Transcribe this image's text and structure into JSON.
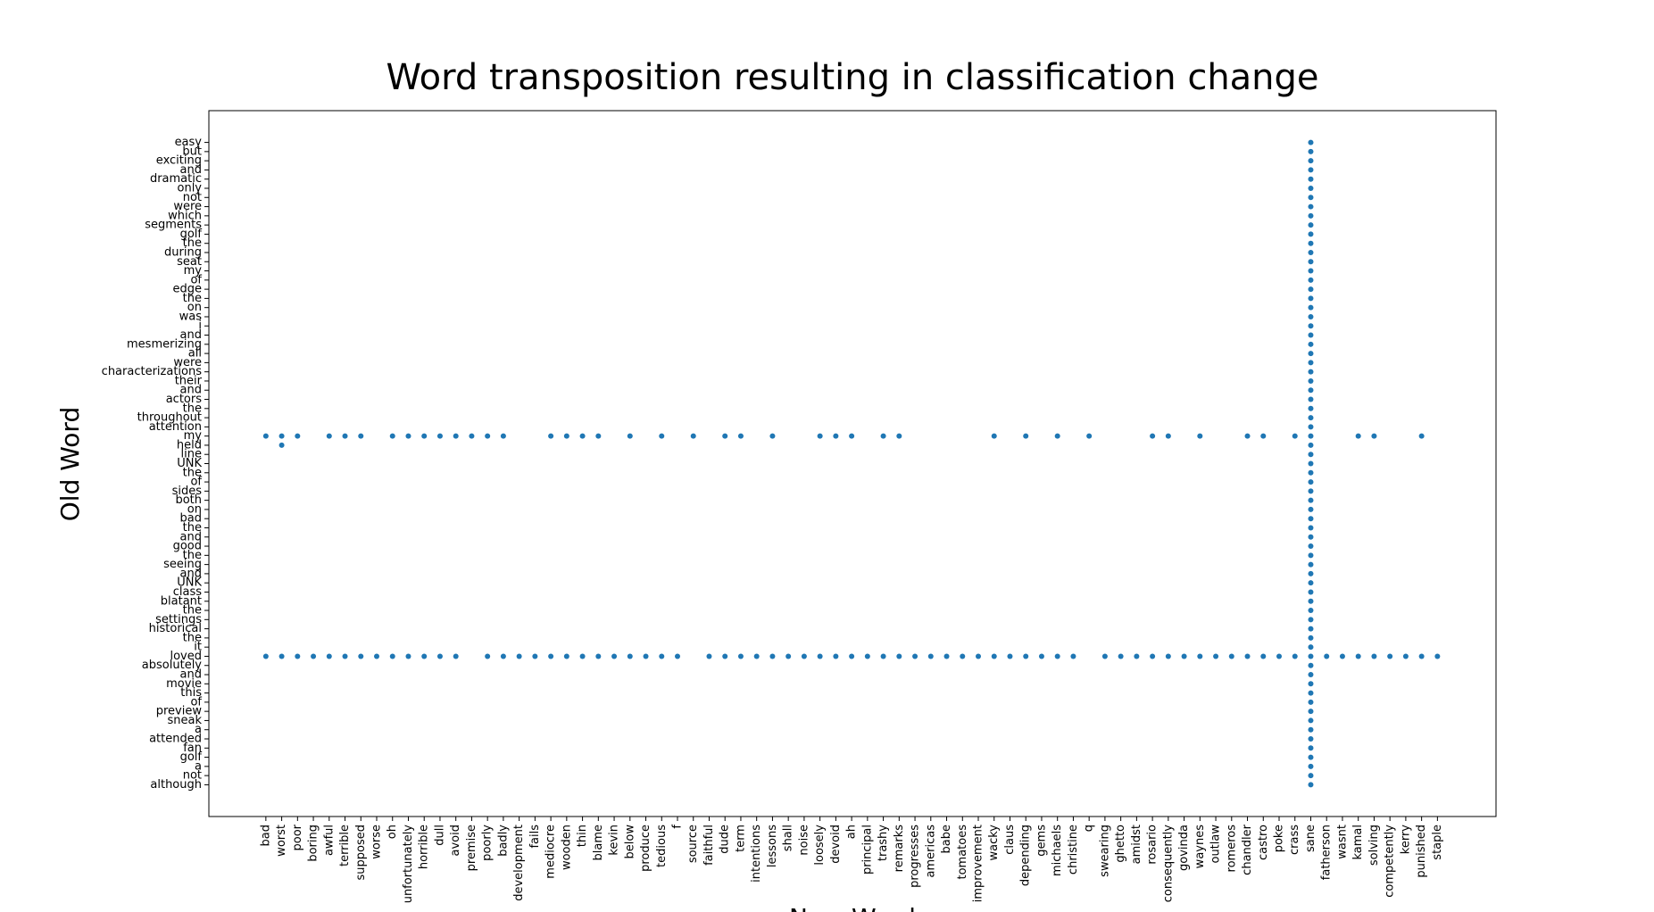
{
  "chart_data": {
    "type": "scatter",
    "title": "Word transposition resulting in classification change",
    "xlabel": "New Word",
    "ylabel": "Old Word",
    "xlim": [
      -3.6,
      77.7
    ],
    "ylim": [
      -3.46,
      73.46
    ],
    "xticks": [
      {
        "value": 0,
        "label": "bad"
      },
      {
        "value": 1,
        "label": "worst"
      },
      {
        "value": 2,
        "label": "poor"
      },
      {
        "value": 3,
        "label": "boring"
      },
      {
        "value": 4,
        "label": "awful"
      },
      {
        "value": 5,
        "label": "terrible"
      },
      {
        "value": 6,
        "label": "supposed"
      },
      {
        "value": 7,
        "label": "worse"
      },
      {
        "value": 8,
        "label": "oh"
      },
      {
        "value": 9,
        "label": "unfortunately"
      },
      {
        "value": 10,
        "label": "horrible"
      },
      {
        "value": 11,
        "label": "dull"
      },
      {
        "value": 12,
        "label": "avoid"
      },
      {
        "value": 13,
        "label": "premise"
      },
      {
        "value": 14,
        "label": "poorly"
      },
      {
        "value": 15,
        "label": "badly"
      },
      {
        "value": 16,
        "label": "development"
      },
      {
        "value": 17,
        "label": "fails"
      },
      {
        "value": 18,
        "label": "mediocre"
      },
      {
        "value": 19,
        "label": "wooden"
      },
      {
        "value": 20,
        "label": "thin"
      },
      {
        "value": 21,
        "label": "blame"
      },
      {
        "value": 22,
        "label": "kevin"
      },
      {
        "value": 23,
        "label": "below"
      },
      {
        "value": 24,
        "label": "produce"
      },
      {
        "value": 25,
        "label": "tedious"
      },
      {
        "value": 26,
        "label": "f"
      },
      {
        "value": 27,
        "label": "source"
      },
      {
        "value": 28,
        "label": "faithful"
      },
      {
        "value": 29,
        "label": "dude"
      },
      {
        "value": 30,
        "label": "term"
      },
      {
        "value": 31,
        "label": "intentions"
      },
      {
        "value": 32,
        "label": "lessons"
      },
      {
        "value": 33,
        "label": "shall"
      },
      {
        "value": 34,
        "label": "noise"
      },
      {
        "value": 35,
        "label": "loosely"
      },
      {
        "value": 36,
        "label": "devoid"
      },
      {
        "value": 37,
        "label": "ah"
      },
      {
        "value": 38,
        "label": "principal"
      },
      {
        "value": 39,
        "label": "trashy"
      },
      {
        "value": 40,
        "label": "remarks"
      },
      {
        "value": 41,
        "label": "progresses"
      },
      {
        "value": 42,
        "label": "americas"
      },
      {
        "value": 43,
        "label": "babe"
      },
      {
        "value": 44,
        "label": "tomatoes"
      },
      {
        "value": 45,
        "label": "improvement"
      },
      {
        "value": 46,
        "label": "wacky"
      },
      {
        "value": 47,
        "label": "claus"
      },
      {
        "value": 48,
        "label": "depending"
      },
      {
        "value": 49,
        "label": "gems"
      },
      {
        "value": 50,
        "label": "michaels"
      },
      {
        "value": 51,
        "label": "christine"
      },
      {
        "value": 52,
        "label": "q"
      },
      {
        "value": 53,
        "label": "swearing"
      },
      {
        "value": 54,
        "label": "ghetto"
      },
      {
        "value": 55,
        "label": "amidst"
      },
      {
        "value": 56,
        "label": "rosario"
      },
      {
        "value": 57,
        "label": "consequently"
      },
      {
        "value": 58,
        "label": "govinda"
      },
      {
        "value": 59,
        "label": "waynes"
      },
      {
        "value": 60,
        "label": "outlaw"
      },
      {
        "value": 61,
        "label": "romeros"
      },
      {
        "value": 62,
        "label": "chandler"
      },
      {
        "value": 63,
        "label": "castro"
      },
      {
        "value": 64,
        "label": "poke"
      },
      {
        "value": 65,
        "label": "crass"
      },
      {
        "value": 66,
        "label": "sane"
      },
      {
        "value": 67,
        "label": "fatherson"
      },
      {
        "value": 68,
        "label": "wasnt"
      },
      {
        "value": 69,
        "label": "kamal"
      },
      {
        "value": 70,
        "label": "solving"
      },
      {
        "value": 71,
        "label": "competently"
      },
      {
        "value": 72,
        "label": "kerry"
      },
      {
        "value": 73,
        "label": "punished"
      },
      {
        "value": 74,
        "label": "staple"
      }
    ],
    "yticks": [
      {
        "value": 70,
        "label": "easy"
      },
      {
        "value": 69,
        "label": "but"
      },
      {
        "value": 68,
        "label": "exciting"
      },
      {
        "value": 67,
        "label": "and"
      },
      {
        "value": 66,
        "label": "dramatic"
      },
      {
        "value": 65,
        "label": "only"
      },
      {
        "value": 64,
        "label": "not"
      },
      {
        "value": 63,
        "label": "were"
      },
      {
        "value": 62,
        "label": "which"
      },
      {
        "value": 61,
        "label": "segments"
      },
      {
        "value": 60,
        "label": "golf"
      },
      {
        "value": 59,
        "label": "the"
      },
      {
        "value": 58,
        "label": "during"
      },
      {
        "value": 57,
        "label": "seat"
      },
      {
        "value": 56,
        "label": "my"
      },
      {
        "value": 55,
        "label": "of"
      },
      {
        "value": 54,
        "label": "edge"
      },
      {
        "value": 53,
        "label": "the"
      },
      {
        "value": 52,
        "label": "on"
      },
      {
        "value": 51,
        "label": "was"
      },
      {
        "value": 50,
        "label": "i"
      },
      {
        "value": 49,
        "label": "and"
      },
      {
        "value": 48,
        "label": "mesmerizing"
      },
      {
        "value": 47,
        "label": "all"
      },
      {
        "value": 46,
        "label": "were"
      },
      {
        "value": 45,
        "label": "characterizations"
      },
      {
        "value": 44,
        "label": "their"
      },
      {
        "value": 43,
        "label": "and"
      },
      {
        "value": 42,
        "label": "actors"
      },
      {
        "value": 41,
        "label": "the"
      },
      {
        "value": 40,
        "label": "throughout"
      },
      {
        "value": 39,
        "label": "attention"
      },
      {
        "value": 38,
        "label": "my"
      },
      {
        "value": 37,
        "label": "held"
      },
      {
        "value": 36,
        "label": "line"
      },
      {
        "value": 35,
        "label": "UNK"
      },
      {
        "value": 34,
        "label": "the"
      },
      {
        "value": 33,
        "label": "of"
      },
      {
        "value": 32,
        "label": "sides"
      },
      {
        "value": 31,
        "label": "both"
      },
      {
        "value": 30,
        "label": "on"
      },
      {
        "value": 29,
        "label": "bad"
      },
      {
        "value": 28,
        "label": "the"
      },
      {
        "value": 27,
        "label": "and"
      },
      {
        "value": 26,
        "label": "good"
      },
      {
        "value": 25,
        "label": "the"
      },
      {
        "value": 24,
        "label": "seeing"
      },
      {
        "value": 23,
        "label": "and"
      },
      {
        "value": 22,
        "label": "UNK"
      },
      {
        "value": 21,
        "label": "class"
      },
      {
        "value": 20,
        "label": "blatant"
      },
      {
        "value": 19,
        "label": "the"
      },
      {
        "value": 18,
        "label": "settings"
      },
      {
        "value": 17,
        "label": "historical"
      },
      {
        "value": 16,
        "label": "the"
      },
      {
        "value": 15,
        "label": "it"
      },
      {
        "value": 14,
        "label": "loved"
      },
      {
        "value": 13,
        "label": "absolutely"
      },
      {
        "value": 12,
        "label": "and"
      },
      {
        "value": 11,
        "label": "movie"
      },
      {
        "value": 10,
        "label": "this"
      },
      {
        "value": 9,
        "label": "of"
      },
      {
        "value": 8,
        "label": "preview"
      },
      {
        "value": 7,
        "label": "sneak"
      },
      {
        "value": 6,
        "label": "a"
      },
      {
        "value": 5,
        "label": "attended"
      },
      {
        "value": 4,
        "label": "fan"
      },
      {
        "value": 3,
        "label": "golf"
      },
      {
        "value": 2,
        "label": "a"
      },
      {
        "value": 1,
        "label": "not"
      },
      {
        "value": 0,
        "label": "although"
      }
    ],
    "series": [
      {
        "color": "#1f77b4",
        "x": [
          66,
          66,
          66,
          66,
          66,
          66,
          66,
          66,
          66,
          66,
          66,
          66,
          66,
          66,
          66,
          66,
          66,
          66,
          66,
          66,
          66,
          66,
          66,
          66,
          66,
          66,
          66,
          66,
          66,
          66,
          66,
          66,
          66,
          66,
          66,
          66,
          66,
          66,
          66,
          66,
          66,
          66,
          66,
          66,
          66,
          66,
          66,
          66,
          66,
          66,
          66,
          66,
          66,
          66,
          66,
          66,
          66,
          66,
          66,
          66,
          66,
          66,
          66,
          66,
          66,
          66,
          66,
          66,
          66,
          66,
          66
        ],
        "y": [
          0,
          1,
          2,
          3,
          4,
          5,
          6,
          7,
          8,
          9,
          10,
          11,
          12,
          13,
          14,
          15,
          16,
          17,
          18,
          19,
          20,
          21,
          22,
          23,
          24,
          25,
          26,
          27,
          28,
          29,
          30,
          31,
          32,
          33,
          34,
          35,
          36,
          37,
          38,
          39,
          40,
          41,
          42,
          43,
          44,
          45,
          46,
          47,
          48,
          49,
          50,
          51,
          52,
          53,
          54,
          55,
          56,
          57,
          58,
          59,
          60,
          61,
          62,
          63,
          64,
          65,
          66,
          67,
          68,
          69,
          70
        ]
      },
      {
        "color": "#1f77b4",
        "x": [
          0,
          1,
          2,
          4,
          5,
          6,
          8,
          9,
          10,
          11,
          12,
          13,
          14,
          15,
          18,
          19,
          20,
          21,
          23,
          25,
          27,
          29,
          30,
          32,
          35,
          36,
          37,
          39,
          40,
          46,
          48,
          50,
          52,
          56,
          57,
          59,
          62,
          63,
          65,
          69,
          70,
          73
        ],
        "y": [
          38,
          38,
          38,
          38,
          38,
          38,
          38,
          38,
          38,
          38,
          38,
          38,
          38,
          38,
          38,
          38,
          38,
          38,
          38,
          38,
          38,
          38,
          38,
          38,
          38,
          38,
          38,
          38,
          38,
          38,
          38,
          38,
          38,
          38,
          38,
          38,
          38,
          38,
          38,
          38,
          38,
          38
        ]
      },
      {
        "color": "#1f77b4",
        "x": [
          1
        ],
        "y": [
          37
        ]
      },
      {
        "color": "#1f77b4",
        "x": [
          0,
          1,
          2,
          3,
          4,
          5,
          6,
          7,
          8,
          9,
          10,
          11,
          12,
          14,
          15,
          16,
          17,
          18,
          19,
          20,
          21,
          22,
          23,
          24,
          25,
          26,
          28,
          29,
          30,
          31,
          32,
          33,
          34,
          35,
          36,
          37,
          38,
          39,
          40,
          41,
          42,
          43,
          44,
          45,
          46,
          47,
          48,
          49,
          50,
          51,
          53,
          54,
          55,
          56,
          57,
          58,
          59,
          60,
          61,
          62,
          63,
          64,
          65,
          67,
          68,
          69,
          70,
          71,
          72,
          73,
          74
        ],
        "y": [
          14,
          14,
          14,
          14,
          14,
          14,
          14,
          14,
          14,
          14,
          14,
          14,
          14,
          14,
          14,
          14,
          14,
          14,
          14,
          14,
          14,
          14,
          14,
          14,
          14,
          14,
          14,
          14,
          14,
          14,
          14,
          14,
          14,
          14,
          14,
          14,
          14,
          14,
          14,
          14,
          14,
          14,
          14,
          14,
          14,
          14,
          14,
          14,
          14,
          14,
          14,
          14,
          14,
          14,
          14,
          14,
          14,
          14,
          14,
          14,
          14,
          14,
          14,
          14,
          14,
          14,
          14,
          14,
          14,
          14,
          14
        ]
      }
    ]
  }
}
